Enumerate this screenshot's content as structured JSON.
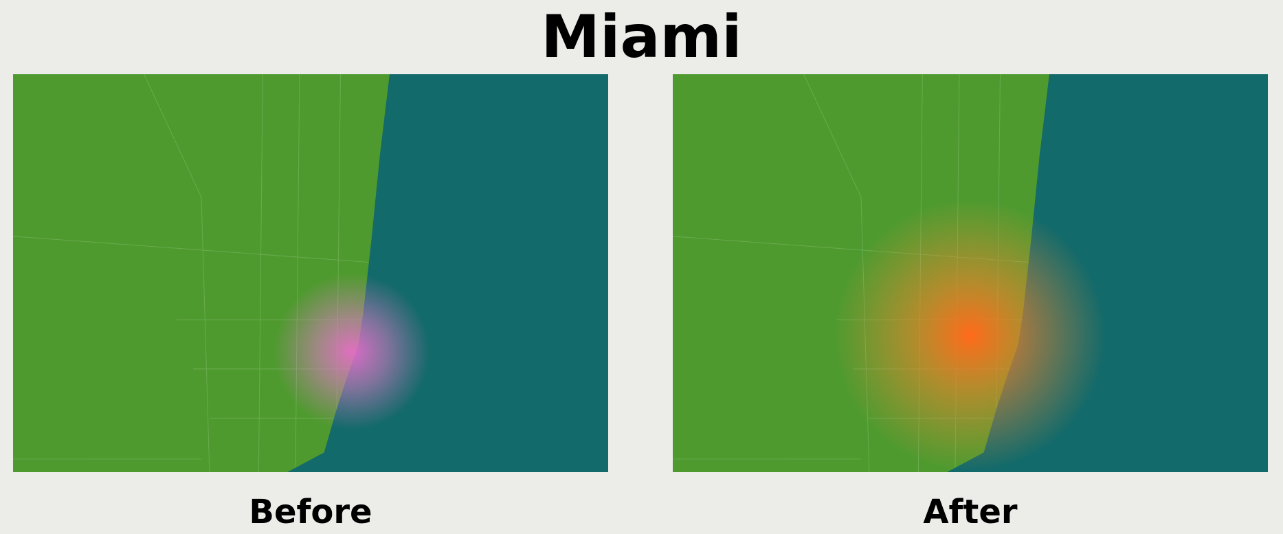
{
  "title": "Miami",
  "panels": [
    {
      "label": "Before"
    },
    {
      "label": "After"
    }
  ]
}
